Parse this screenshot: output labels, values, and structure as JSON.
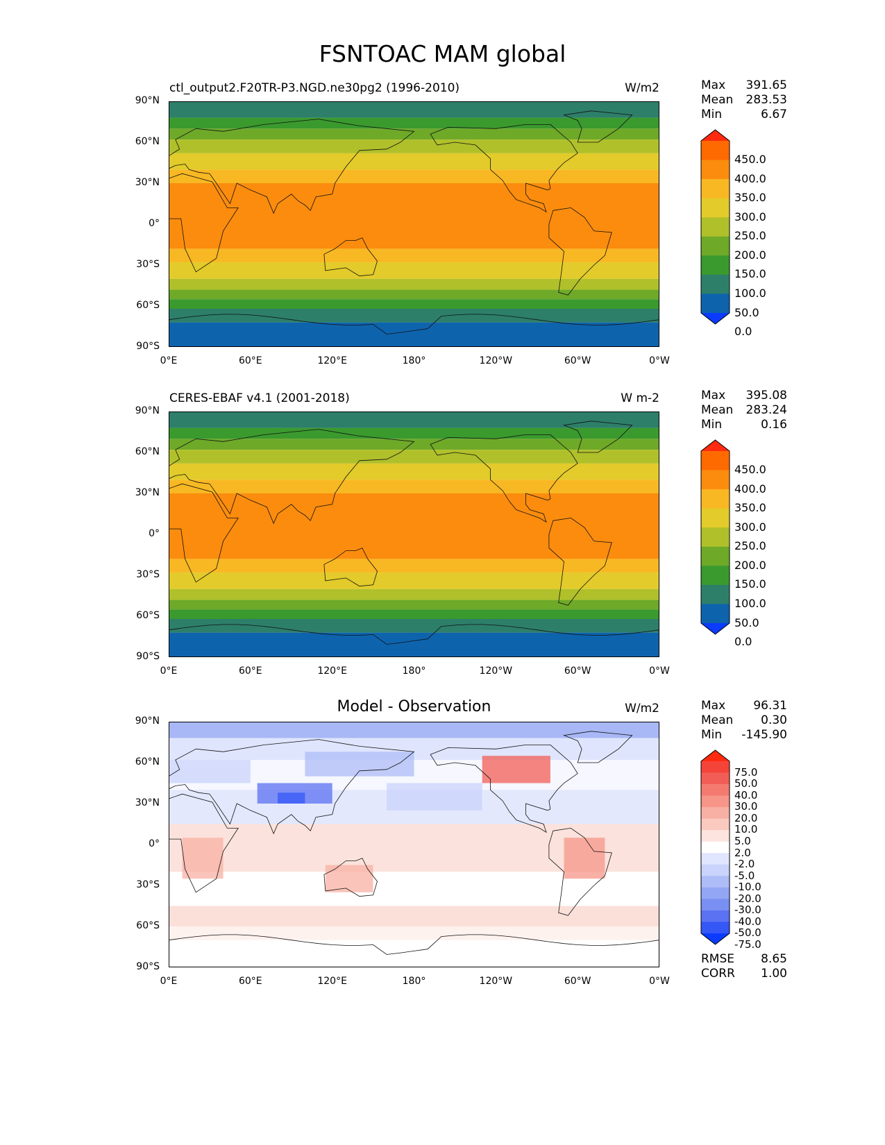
{
  "figure_title": "FSNTOAC MAM global",
  "x_ticks": [
    "0°E",
    "60°E",
    "120°E",
    "180°",
    "120°W",
    "60°W",
    "0°W"
  ],
  "y_ticks": [
    "90°N",
    "60°N",
    "30°N",
    "0°",
    "30°S",
    "60°S",
    "90°S"
  ],
  "panels": [
    {
      "title": "ctl_output2.F20TR-P3.NGD.ne30pg2 (1996-2010)",
      "units": "W/m2",
      "stats": {
        "max_label": "Max",
        "max": "391.65",
        "mean_label": "Mean",
        "mean": "283.53",
        "min_label": "Min",
        "min": "6.67"
      },
      "colorbar": {
        "labels": [
          "450.0",
          "400.0",
          "350.0",
          "300.0",
          "250.0",
          "200.0",
          "150.0",
          "100.0",
          "50.0",
          "0.0"
        ],
        "colors": [
          "#ff2a10",
          "#ff6a00",
          "#fb8c0e",
          "#f8b823",
          "#e2cb2a",
          "#b0c02a",
          "#6ea928",
          "#3a9a2e",
          "#2d7f6a",
          "#0e63ad",
          "#0a3bff"
        ]
      }
    },
    {
      "title": "CERES-EBAF v4.1 (2001-2018)",
      "units": "W m-2",
      "stats": {
        "max_label": "Max",
        "max": "395.08",
        "mean_label": "Mean",
        "mean": "283.24",
        "min_label": "Min",
        "min": "0.16"
      },
      "colorbar": {
        "labels": [
          "450.0",
          "400.0",
          "350.0",
          "300.0",
          "250.0",
          "200.0",
          "150.0",
          "100.0",
          "50.0",
          "0.0"
        ],
        "colors": [
          "#ff2a10",
          "#ff6a00",
          "#fb8c0e",
          "#f8b823",
          "#e2cb2a",
          "#b0c02a",
          "#6ea928",
          "#3a9a2e",
          "#2d7f6a",
          "#0e63ad",
          "#0a3bff"
        ]
      }
    },
    {
      "title": "Model - Observation",
      "units": "W/m2",
      "stats": {
        "max_label": "Max",
        "max": "96.31",
        "mean_label": "Mean",
        "mean": "0.30",
        "min_label": "Min",
        "min": "-145.90"
      },
      "metrics": {
        "rmse_label": "RMSE",
        "rmse": "8.65",
        "corr_label": "CORR",
        "corr": "1.00"
      },
      "colorbar": {
        "labels": [
          "75.0",
          "50.0",
          "40.0",
          "30.0",
          "20.0",
          "10.0",
          "5.0",
          "2.0",
          "-2.0",
          "-5.0",
          "-10.0",
          "-20.0",
          "-30.0",
          "-40.0",
          "-50.0",
          "-75.0"
        ],
        "colors": [
          "#ff2a10",
          "#f4443a",
          "#f25e55",
          "#f47a6f",
          "#f69588",
          "#f8b0a4",
          "#fac9c0",
          "#fde4de",
          "#ffffff",
          "#e0e6ff",
          "#c9d3fb",
          "#aebcf7",
          "#93a6f5",
          "#7a8ff2",
          "#5b72f2",
          "#3557f5",
          "#0a3bff"
        ]
      }
    }
  ],
  "chart_data": [
    {
      "type": "heatmap",
      "title": "ctl_output2.F20TR-P3.NGD.ne30pg2 (1996-2010)",
      "units": "W/m2",
      "x_ticks": [
        "0°E",
        "60°E",
        "120°E",
        "180°",
        "120°W",
        "60°W",
        "0°W"
      ],
      "y_ticks": [
        "90°N",
        "60°N",
        "30°N",
        "0°",
        "30°S",
        "60°S",
        "90°S"
      ],
      "levels": [
        0,
        50,
        100,
        150,
        200,
        250,
        300,
        350,
        400,
        450
      ],
      "max": 391.65,
      "mean": 283.53,
      "min": 6.67,
      "zonal_bands": [
        {
          "lat": [
            -90,
            -72
          ],
          "value": 25
        },
        {
          "lat": [
            -72,
            -62
          ],
          "value": 75
        },
        {
          "lat": [
            -62,
            -55
          ],
          "value": 125
        },
        {
          "lat": [
            -55,
            -48
          ],
          "value": 175
        },
        {
          "lat": [
            -48,
            -40
          ],
          "value": 225
        },
        {
          "lat": [
            -40,
            -28
          ],
          "value": 275
        },
        {
          "lat": [
            -28,
            -18
          ],
          "value": 325
        },
        {
          "lat": [
            -18,
            30
          ],
          "value": 375
        },
        {
          "lat": [
            30,
            40
          ],
          "value": 325
        },
        {
          "lat": [
            40,
            52
          ],
          "value": 275
        },
        {
          "lat": [
            52,
            62
          ],
          "value": 225
        },
        {
          "lat": [
            62,
            70
          ],
          "value": 175
        },
        {
          "lat": [
            70,
            78
          ],
          "value": 125
        },
        {
          "lat": [
            78,
            90
          ],
          "value": 75
        }
      ]
    },
    {
      "type": "heatmap",
      "title": "CERES-EBAF v4.1 (2001-2018)",
      "units": "W m-2",
      "x_ticks": [
        "0°E",
        "60°E",
        "120°E",
        "180°",
        "120°W",
        "60°W",
        "0°W"
      ],
      "y_ticks": [
        "90°N",
        "60°N",
        "30°N",
        "0°",
        "30°S",
        "60°S",
        "90°S"
      ],
      "levels": [
        0,
        50,
        100,
        150,
        200,
        250,
        300,
        350,
        400,
        450
      ],
      "max": 395.08,
      "mean": 283.24,
      "min": 0.16,
      "zonal_bands": [
        {
          "lat": [
            -90,
            -72
          ],
          "value": 25
        },
        {
          "lat": [
            -72,
            -62
          ],
          "value": 75
        },
        {
          "lat": [
            -62,
            -55
          ],
          "value": 125
        },
        {
          "lat": [
            -55,
            -48
          ],
          "value": 175
        },
        {
          "lat": [
            -48,
            -40
          ],
          "value": 225
        },
        {
          "lat": [
            -40,
            -28
          ],
          "value": 275
        },
        {
          "lat": [
            -28,
            -18
          ],
          "value": 325
        },
        {
          "lat": [
            -18,
            30
          ],
          "value": 375
        },
        {
          "lat": [
            30,
            40
          ],
          "value": 325
        },
        {
          "lat": [
            40,
            52
          ],
          "value": 275
        },
        {
          "lat": [
            52,
            62
          ],
          "value": 225
        },
        {
          "lat": [
            62,
            70
          ],
          "value": 175
        },
        {
          "lat": [
            70,
            78
          ],
          "value": 125
        },
        {
          "lat": [
            78,
            90
          ],
          "value": 75
        }
      ]
    },
    {
      "type": "heatmap",
      "title": "Model - Observation",
      "units": "W/m2",
      "x_ticks": [
        "0°E",
        "60°E",
        "120°E",
        "180°",
        "120°W",
        "60°W",
        "0°W"
      ],
      "y_ticks": [
        "90°N",
        "60°N",
        "30°N",
        "0°",
        "30°S",
        "60°S",
        "90°S"
      ],
      "levels": [
        -75,
        -50,
        -40,
        -30,
        -20,
        -10,
        -5,
        -2,
        2,
        5,
        10,
        20,
        30,
        40,
        50,
        75
      ],
      "max": 96.31,
      "mean": 0.3,
      "min": -145.9,
      "rmse": 8.65,
      "corr": 1.0
    }
  ]
}
